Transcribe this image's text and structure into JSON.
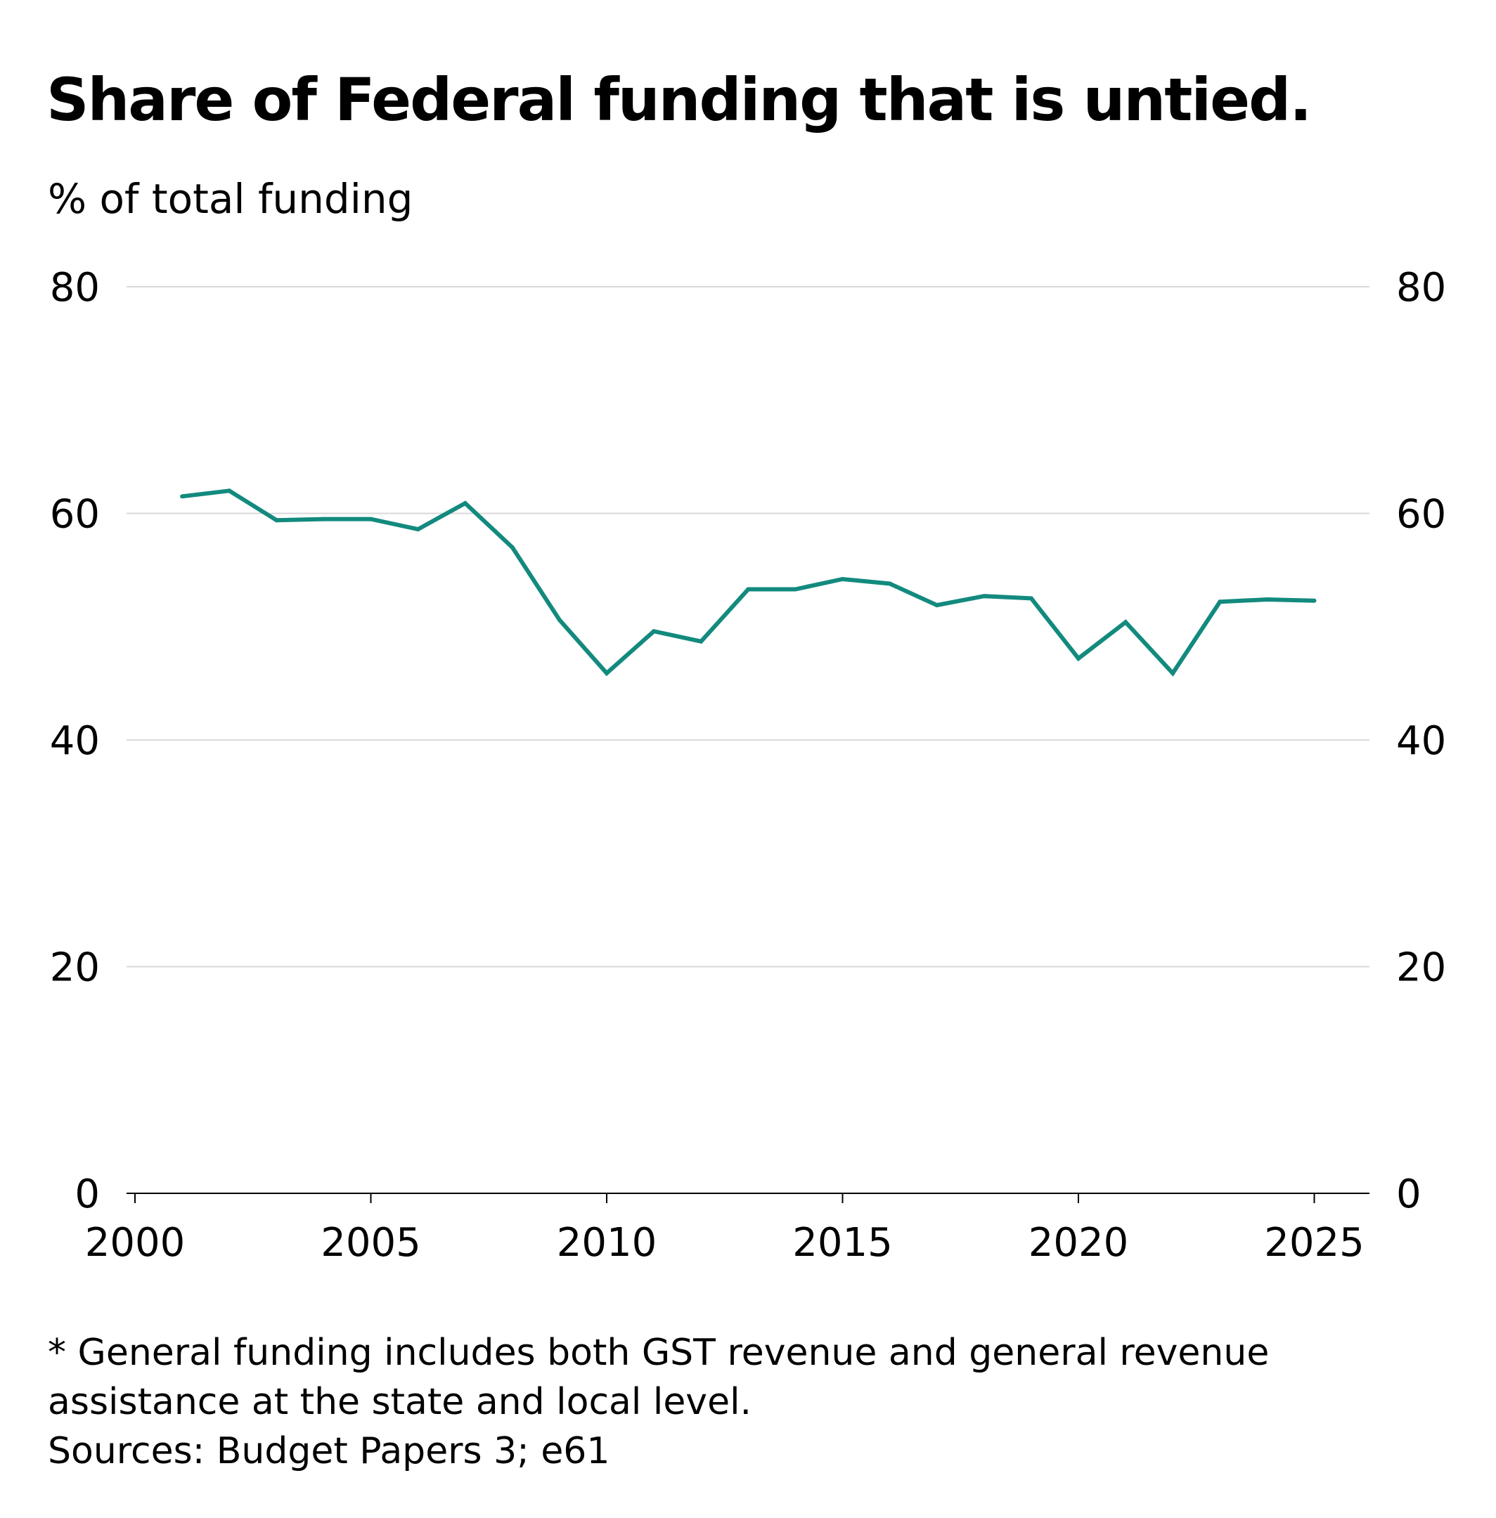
{
  "header": {
    "title": "Share of Federal funding that is untied.",
    "subtitle": "% of total funding"
  },
  "footnote": {
    "note_line_1": "* General funding includes both GST revenue and general revenue",
    "note_line_2": "assistance at the state and local level.",
    "sources": "Sources: Budget Papers 3; e61"
  },
  "colors": {
    "line": "#138a7e",
    "grid": "#d9d9d9",
    "axis": "#000000"
  },
  "chart_data": {
    "type": "line",
    "title": "Share of Federal funding that is untied.",
    "ylabel": "% of total funding",
    "xlabel": "",
    "xlim": [
      2000,
      2026
    ],
    "ylim": [
      0,
      80
    ],
    "x_ticks": [
      2000,
      2005,
      2010,
      2015,
      2020,
      2025
    ],
    "y_ticks": [
      0,
      20,
      40,
      60,
      80
    ],
    "y_axis_both_sides": true,
    "grid": "horizontal",
    "legend": "none",
    "series": [
      {
        "x": [
          2001,
          2002,
          2003,
          2004,
          2005,
          2006,
          2007,
          2008,
          2009,
          2010,
          2011,
          2012,
          2013,
          2014,
          2015,
          2016,
          2017,
          2018,
          2019,
          2020,
          2021,
          2022,
          2023,
          2024,
          2025
        ],
        "values": [
          61.5,
          62.0,
          59.4,
          59.5,
          59.5,
          58.6,
          60.9,
          57.0,
          50.6,
          45.9,
          49.6,
          48.7,
          53.3,
          53.3,
          54.2,
          53.8,
          51.9,
          52.7,
          52.5,
          47.2,
          50.4,
          45.9,
          52.2,
          52.4,
          52.3
        ]
      }
    ]
  }
}
